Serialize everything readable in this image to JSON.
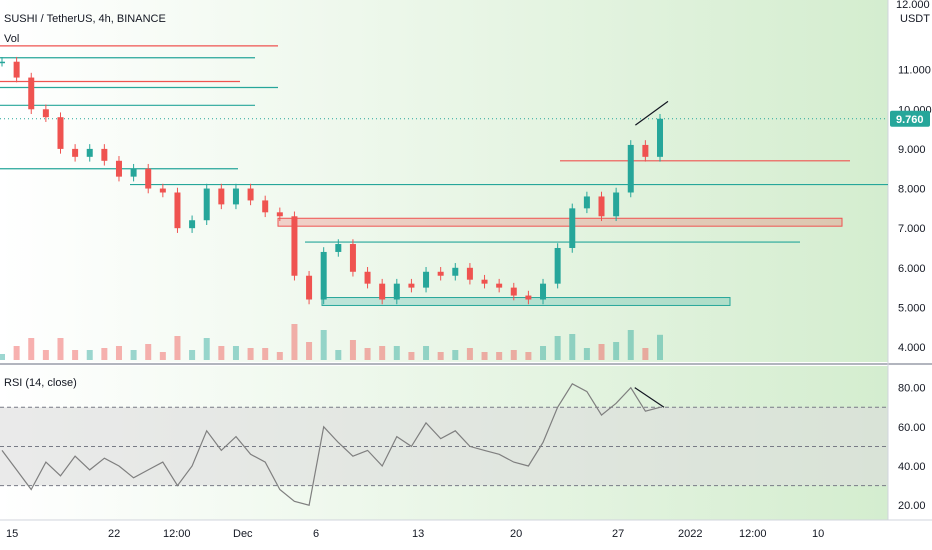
{
  "header": {
    "symbol_line": "SUSHI / TetherUS, 4h, BINANCE",
    "volume_label": "Vol",
    "rsi_label": "RSI (14, close)",
    "price_unit": "USDT",
    "top_label_partial": "12.000"
  },
  "last_price_badge": {
    "value": "9.760",
    "color": "#26a69a"
  },
  "colors": {
    "up": "#26a69a",
    "down": "#ef5350",
    "background_gradient_end": "#d4edcf",
    "rsi_line": "#7f7f7f",
    "rsi_band": "#dcdcdc"
  },
  "chart_data": [
    {
      "type": "line",
      "title": "SUSHI / TetherUS, 4h, BINANCE",
      "ylabel": "USDT",
      "ylim": [
        3.8,
        12.0
      ],
      "yticks": [
        "11.000",
        "10.000",
        "9.000",
        "8.000",
        "7.000",
        "6.000",
        "5.000",
        "4.000"
      ],
      "x_ticks": [
        "15",
        "22",
        "12:00",
        "Dec",
        "6",
        "13",
        "20",
        "27",
        "2022",
        "12:00",
        "10"
      ],
      "series": [
        {
          "name": "",
          "x": [
            "Nov 14",
            "Nov 15",
            "Nov 16",
            "Nov 17",
            "Nov 18",
            "Nov 19",
            "Nov 20",
            "Nov 21",
            "Nov 22",
            "Nov 23",
            "Nov 24",
            "Nov 25",
            "Nov 26",
            "Nov 27",
            "Nov 28",
            "Nov 29",
            "Nov 30",
            "Dec 1",
            "Dec 2",
            "Dec 3",
            "Dec 4",
            "Dec 5",
            "Dec 6",
            "Dec 7",
            "Dec 8",
            "Dec 9",
            "Dec 10",
            "Dec 11",
            "Dec 12",
            "Dec 13",
            "Dec 14",
            "Dec 15",
            "Dec 16",
            "Dec 17",
            "Dec 18",
            "Dec 19",
            "Dec 20",
            "Dec 21",
            "Dec 22",
            "Dec 23",
            "Dec 24",
            "Dec 25",
            "Dec 26",
            "Dec 27",
            "Dec 28",
            "Dec 29"
          ],
          "values": [
            11.2,
            10.8,
            10.0,
            9.8,
            9.0,
            8.8,
            9.0,
            8.7,
            8.3,
            8.5,
            8.0,
            7.9,
            7.0,
            7.2,
            8.0,
            7.6,
            8.0,
            7.7,
            7.4,
            7.3,
            5.8,
            5.2,
            6.4,
            6.6,
            5.9,
            5.6,
            5.2,
            5.6,
            5.5,
            5.9,
            5.8,
            6.0,
            5.7,
            5.6,
            5.5,
            5.3,
            5.2,
            5.6,
            6.5,
            7.5,
            7.8,
            7.3,
            7.9,
            9.1,
            8.8,
            9.76
          ]
        }
      ],
      "horizontal_levels": [
        11.6,
        11.3,
        10.7,
        10.55,
        10.1,
        8.7,
        8.5,
        8.1,
        6.65
      ],
      "zones": [
        {
          "from": 7.05,
          "to": 7.25,
          "color": "#ef5350"
        },
        {
          "from": 5.05,
          "to": 5.25,
          "color": "#26a69a"
        }
      ],
      "trendline": {
        "from": [
          9.6
        ],
        "to": [
          10.2
        ]
      },
      "grid": false,
      "log": false
    },
    {
      "type": "line",
      "title": "RSI (14, close)",
      "ylim": [
        15,
        88
      ],
      "yticks": [
        "80.00",
        "60.00",
        "40.00",
        "20.00"
      ],
      "levels": [
        70,
        50,
        30
      ],
      "series": [
        {
          "name": "",
          "x": [
            "Nov 14",
            "Nov 15",
            "Nov 16",
            "Nov 17",
            "Nov 18",
            "Nov 19",
            "Nov 20",
            "Nov 21",
            "Nov 22",
            "Nov 23",
            "Nov 24",
            "Nov 25",
            "Nov 26",
            "Nov 27",
            "Nov 28",
            "Nov 29",
            "Nov 30",
            "Dec 1",
            "Dec 2",
            "Dec 3",
            "Dec 4",
            "Dec 5",
            "Dec 6",
            "Dec 7",
            "Dec 8",
            "Dec 9",
            "Dec 10",
            "Dec 11",
            "Dec 12",
            "Dec 13",
            "Dec 14",
            "Dec 15",
            "Dec 16",
            "Dec 17",
            "Dec 18",
            "Dec 19",
            "Dec 20",
            "Dec 21",
            "Dec 22",
            "Dec 23",
            "Dec 24",
            "Dec 25",
            "Dec 26",
            "Dec 27",
            "Dec 28",
            "Dec 29"
          ],
          "values": [
            48,
            38,
            28,
            42,
            35,
            45,
            38,
            44,
            40,
            34,
            38,
            42,
            30,
            40,
            58,
            48,
            55,
            46,
            42,
            28,
            22,
            20,
            60,
            52,
            45,
            48,
            40,
            55,
            50,
            62,
            54,
            58,
            50,
            48,
            46,
            42,
            40,
            52,
            70,
            82,
            78,
            66,
            72,
            80,
            68,
            70
          ]
        }
      ],
      "grid": false
    }
  ]
}
